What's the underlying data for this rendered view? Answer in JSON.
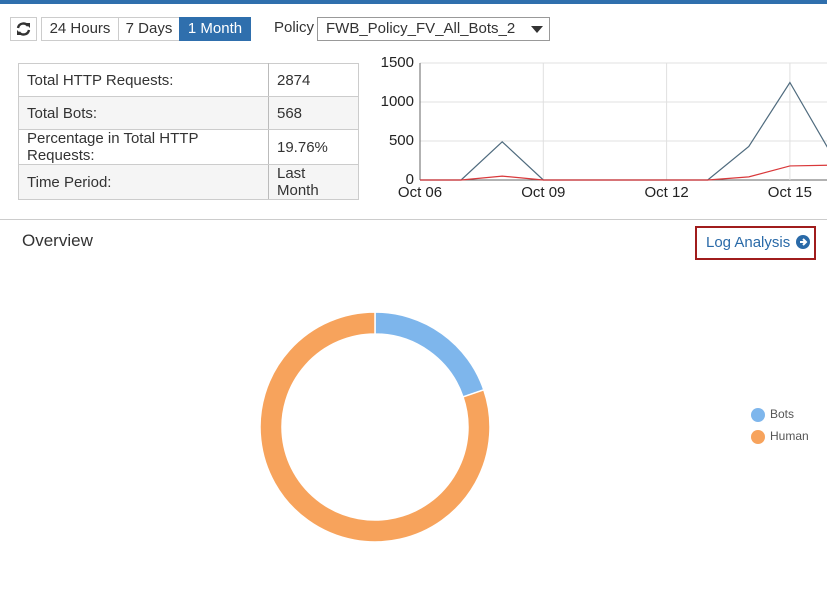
{
  "toolbar": {
    "time_ranges": [
      "24 Hours",
      "7 Days",
      "1 Month"
    ],
    "active_range": 2,
    "policy_label": "Policy",
    "policy_value": "FWB_Policy_FV_All_Bots_2"
  },
  "stats_table": {
    "rows": [
      [
        "Total HTTP Requests:",
        "2874"
      ],
      [
        "Total Bots:",
        "568"
      ],
      [
        "Percentage in Total HTTP Requests:",
        "19.76%"
      ],
      [
        "Time Period:",
        "Last Month"
      ]
    ]
  },
  "overview": {
    "title": "Overview",
    "link": "Log Analysis"
  },
  "chart_data": [
    {
      "type": "line",
      "categories": [
        "Oct 06",
        null,
        null,
        "Oct 09",
        null,
        null,
        "Oct 12",
        null,
        null,
        "Oct 15",
        null
      ],
      "series": [
        {
          "color": "#4f6b7e",
          "values": [
            0,
            0,
            490,
            0,
            0,
            0,
            0,
            0,
            430,
            1250,
            340
          ]
        },
        {
          "color": "#d9383a",
          "values": [
            0,
            0,
            50,
            0,
            0,
            0,
            0,
            0,
            40,
            180,
            190
          ]
        }
      ],
      "ylim": [
        0,
        1500
      ],
      "yticks": [
        0,
        500,
        1000,
        1500
      ],
      "grid": true
    },
    {
      "type": "pie",
      "donut": true,
      "categories": [
        "Bots",
        "Human"
      ],
      "values": [
        568,
        2306
      ],
      "colors": [
        "#7eb6ec",
        "#f7a35c"
      ]
    }
  ]
}
